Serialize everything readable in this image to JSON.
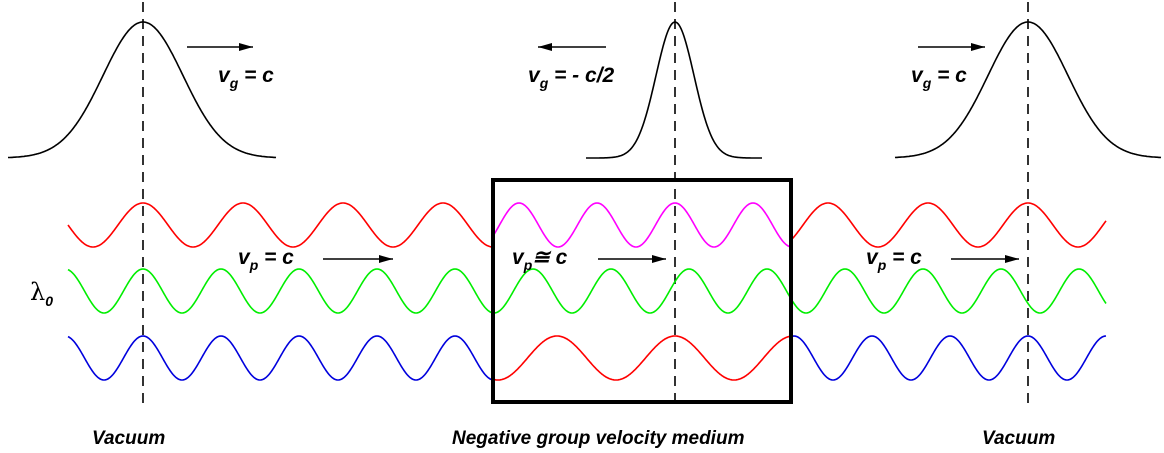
{
  "colors": {
    "red": "#ff0000",
    "green": "#00ee00",
    "blue": "#0000dd",
    "magenta": "#ff00ff",
    "black": "#000000"
  },
  "labels": {
    "vg_left": {
      "v": "v",
      "sub": "g",
      "rest": " = c"
    },
    "vg_mid": {
      "v": "v",
      "sub": "g",
      "rest": " = - c/2"
    },
    "vg_right": {
      "v": "v",
      "sub": "g",
      "rest": " = c"
    },
    "vp_left": {
      "v": "v",
      "sub": "p",
      "rest": " = c"
    },
    "vp_mid": {
      "v": "v",
      "sub": "p",
      "rest": "≅ c"
    },
    "vp_right": {
      "v": "v",
      "sub": "p",
      "rest": " = c"
    },
    "lambda": {
      "sym": "λ",
      "sub": "0"
    },
    "region_left": "Vacuum",
    "region_mid": "Negative group velocity medium",
    "region_right": "Vacuum"
  }
}
